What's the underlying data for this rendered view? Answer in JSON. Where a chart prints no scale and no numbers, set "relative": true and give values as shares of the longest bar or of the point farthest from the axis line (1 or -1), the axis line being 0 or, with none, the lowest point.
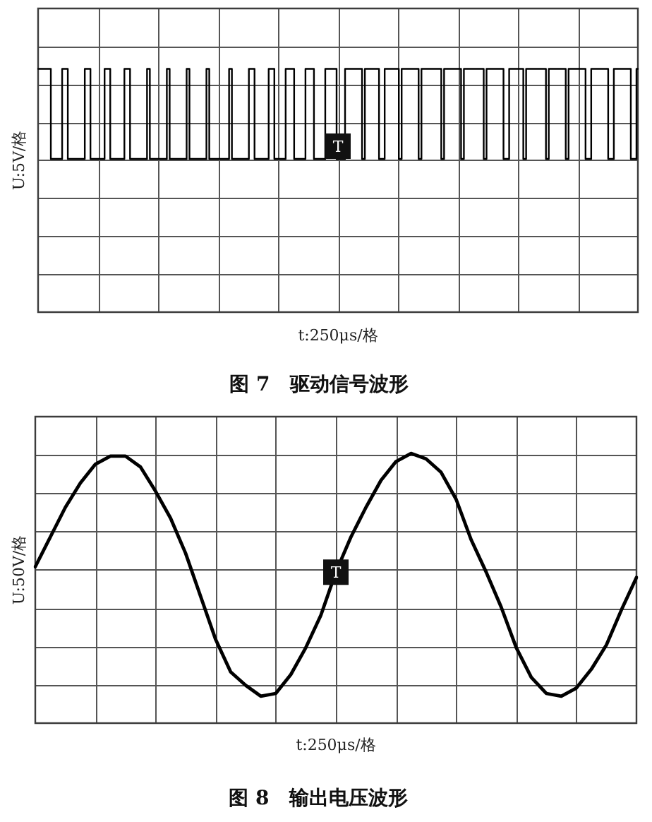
{
  "chart_data": [
    {
      "type": "step",
      "title": "图 7　驱动信号波形",
      "xlabel": "t:250μs/格",
      "ylabel": "U:5V/格",
      "relative": true,
      "grid": true,
      "marker": "none",
      "color": "#000000",
      "annotations": [
        "T"
      ],
      "categories": [
        null,
        null,
        null,
        null,
        null,
        null,
        null,
        null,
        null,
        null,
        null,
        null,
        null,
        null,
        null,
        null,
        null,
        null,
        null,
        null,
        null,
        null,
        null,
        null,
        null,
        null,
        null,
        null,
        null,
        null,
        null,
        null,
        null,
        null,
        null,
        null,
        null,
        null,
        null,
        null,
        null,
        null,
        null,
        null,
        null,
        null,
        null,
        null,
        null,
        null,
        null,
        null,
        null,
        null,
        null,
        null,
        null,
        null,
        null,
        null,
        null,
        null,
        null,
        null,
        null,
        null,
        null,
        null,
        null,
        null,
        null,
        null,
        null,
        null,
        null,
        null,
        null,
        null,
        null,
        null,
        null,
        null,
        null,
        null,
        null,
        null,
        null,
        null,
        null,
        null,
        null,
        null,
        null,
        null,
        null,
        null,
        null,
        null,
        null,
        null,
        null,
        null,
        null,
        null,
        null,
        null,
        null,
        null,
        null,
        null,
        null,
        null,
        null,
        null,
        null,
        null,
        null,
        null,
        null,
        null,
        null,
        null,
        null,
        null,
        null,
        null,
        null,
        null,
        null,
        null,
        null,
        null,
        null,
        null,
        null,
        null,
        null,
        null,
        null,
        null,
        null,
        null,
        null,
        null,
        null,
        null,
        null,
        null,
        null,
        null,
        null,
        null,
        null,
        null,
        null,
        null,
        null,
        null,
        null,
        null,
        null,
        null,
        null,
        null,
        null,
        null,
        null,
        null,
        null,
        null,
        null,
        null,
        null,
        null,
        null,
        null,
        null,
        null,
        null,
        null,
        null,
        null,
        null,
        null,
        null,
        null,
        null,
        null,
        null,
        null,
        null,
        null,
        null,
        null,
        null,
        null,
        null,
        null,
        null,
        null,
        null,
        null,
        null,
        null,
        null,
        null,
        null,
        null,
        null,
        null,
        null,
        null,
        null
      ],
      "values": [
        1,
        1,
        1,
        1,
        1,
        0.63,
        0.63,
        0.63,
        0.63,
        1,
        1,
        0.63,
        0.63,
        0.63,
        0.63,
        0.63,
        0.63,
        1,
        1,
        0.63,
        0.63,
        0.63,
        0.63,
        0.63,
        1,
        1,
        0.63,
        0.63,
        0.63,
        0.63,
        0.63,
        1,
        1,
        0.63,
        0.63,
        0.63,
        0.63,
        0.63,
        0.63,
        1,
        0.63,
        0.63,
        0.63,
        0.63,
        0.63,
        0.63,
        1,
        0.63,
        0.63,
        0.63,
        0.63,
        0.63,
        0.63,
        1,
        0.63,
        0.63,
        0.63,
        0.63,
        0.63,
        0.63,
        1,
        0.63,
        0.63,
        0.63,
        0.63,
        0.63,
        0.63,
        0.63,
        1,
        0.63,
        0.63,
        0.63,
        0.63,
        0.63,
        0.63,
        1,
        1,
        0.63,
        0.63,
        0.63,
        0.63,
        0.63,
        1,
        1,
        0.63,
        0.63,
        0.63,
        0.63,
        1,
        1,
        1,
        0.63,
        0.63,
        0.63,
        0.63,
        1,
        1,
        1,
        0.63,
        0.63,
        0.63,
        0.63,
        1,
        1,
        1,
        1,
        0.63,
        0.63,
        0.63,
        1,
        1,
        1,
        1,
        1,
        1,
        0.63,
        1,
        1,
        1,
        1,
        1,
        0.63,
        0.63,
        1,
        1,
        1,
        1,
        1,
        0.63,
        1,
        1,
        1,
        1,
        1,
        1,
        0.63,
        1,
        1,
        1,
        1,
        1,
        1,
        1,
        0.63,
        1,
        1,
        1,
        1,
        1,
        1,
        0.63,
        1,
        1,
        1,
        1,
        1,
        1,
        1,
        0.63,
        1,
        1,
        1,
        1,
        1,
        1,
        0.63,
        0.63,
        1,
        1,
        1,
        1,
        1,
        0.63,
        1,
        1,
        1,
        1,
        1,
        1,
        1,
        0.63,
        1,
        1,
        1,
        1,
        1,
        1,
        0.63,
        1,
        1,
        1,
        1,
        1,
        1,
        0.63,
        0.63,
        1,
        1,
        1,
        1,
        1,
        1,
        0.63,
        0.63,
        1,
        1,
        1,
        1,
        1,
        1,
        0.63,
        0.63,
        1
      ]
    },
    {
      "type": "line",
      "title": "图 8　输出电压波形",
      "xlabel": "t:250μs/格",
      "ylabel": "U:50V/格",
      "relative": true,
      "grid": true,
      "marker": "none",
      "color": "#000000",
      "annotations": [
        "T"
      ],
      "categories": [
        null,
        null,
        null,
        null,
        null,
        null,
        null,
        null,
        null,
        null,
        null,
        null,
        null,
        null,
        null,
        null,
        null,
        null,
        null,
        null,
        null,
        null,
        null,
        null,
        null,
        null,
        null,
        null,
        null,
        null,
        null,
        null,
        null,
        null,
        null,
        null,
        null,
        null,
        null,
        null,
        null
      ],
      "values": [
        0.58,
        0.69,
        0.8,
        0.89,
        0.96,
        0.99,
        0.99,
        0.95,
        0.86,
        0.76,
        0.63,
        0.47,
        0.31,
        0.19,
        0.14,
        0.1,
        0.11,
        0.18,
        0.28,
        0.4,
        0.56,
        0.69,
        0.8,
        0.9,
        0.97,
        1,
        0.98,
        0.93,
        0.83,
        0.68,
        0.56,
        0.43,
        0.28,
        0.17,
        0.11,
        0.1,
        0.13,
        0.2,
        0.29,
        0.42,
        0.54
      ]
    }
  ]
}
